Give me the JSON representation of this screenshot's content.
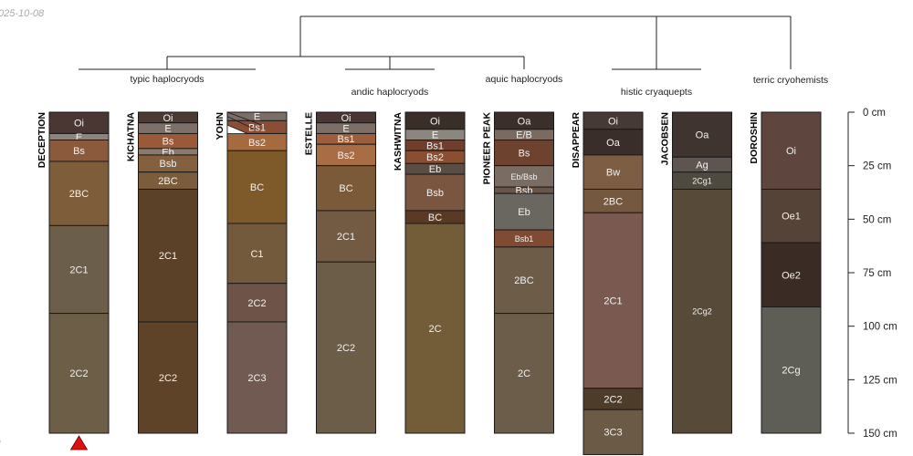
{
  "stamp": {
    "date": "025-10-08",
    "corner": "l"
  },
  "groups": [
    {
      "label": "typic haplocryods"
    },
    {
      "label": "andic haplocryods"
    },
    {
      "label": "aquic haplocryods"
    },
    {
      "label": "histic cryaquepts"
    },
    {
      "label": "terric cryohemists"
    }
  ],
  "depth_axis": {
    "unit": "cm",
    "ticks": [
      {
        "value": 0,
        "label": "0 cm"
      },
      {
        "value": 25,
        "label": "25 cm"
      },
      {
        "value": 50,
        "label": "50 cm"
      },
      {
        "value": 75,
        "label": "75 cm"
      },
      {
        "value": 100,
        "label": "100 cm"
      },
      {
        "value": 125,
        "label": "125 cm"
      },
      {
        "value": 150,
        "label": "150 cm"
      }
    ]
  },
  "profiles": [
    {
      "name": "DECEPTION",
      "marker": "red-triangle",
      "horizons": [
        {
          "name": "Oi",
          "top": 0,
          "bottom": 10,
          "color": "#4a3632"
        },
        {
          "name": "E",
          "top": 10,
          "bottom": 13,
          "color": "#8c857e"
        },
        {
          "name": "Bs",
          "top": 13,
          "bottom": 23,
          "color": "#8b5a3c"
        },
        {
          "name": "2BC",
          "top": 23,
          "bottom": 53,
          "color": "#7e5e3a"
        },
        {
          "name": "2C1",
          "top": 53,
          "bottom": 94,
          "color": "#6b5e4a"
        },
        {
          "name": "2C2",
          "top": 94,
          "bottom": 150,
          "color": "#6d5e47"
        }
      ]
    },
    {
      "name": "KICHATNA",
      "horizons": [
        {
          "name": "Oi",
          "top": 0,
          "bottom": 5,
          "color": "#4b3a33"
        },
        {
          "name": "E",
          "top": 5,
          "bottom": 10,
          "color": "#7d7068"
        },
        {
          "name": "Bs",
          "top": 10,
          "bottom": 17,
          "color": "#9a5a3a"
        },
        {
          "name": "Eb",
          "top": 17,
          "bottom": 20,
          "color": "#8a7a6e"
        },
        {
          "name": "Bsb",
          "top": 20,
          "bottom": 28,
          "color": "#85603f"
        },
        {
          "name": "2BC",
          "top": 28,
          "bottom": 36,
          "color": "#7b5c3c"
        },
        {
          "name": "2C1",
          "top": 36,
          "bottom": 98,
          "color": "#5b4128"
        },
        {
          "name": "2C2",
          "top": 98,
          "bottom": 150,
          "color": "#5e4329"
        }
      ]
    },
    {
      "name": "YOHN",
      "horizons": [
        {
          "name": "E",
          "top": 0,
          "bottom": 4,
          "color": "#7b6e66"
        },
        {
          "name": "Bs1",
          "top": 4,
          "bottom": 10,
          "color": "#8b4e35"
        },
        {
          "name": "Bs2",
          "top": 10,
          "bottom": 18,
          "color": "#a66a40"
        },
        {
          "name": "BC",
          "top": 18,
          "bottom": 52,
          "color": "#7e5a2a"
        },
        {
          "name": "C1",
          "top": 52,
          "bottom": 80,
          "color": "#735a3c"
        },
        {
          "name": "2C2",
          "top": 80,
          "bottom": 98,
          "color": "#6e5448"
        },
        {
          "name": "2C3",
          "top": 98,
          "bottom": 150,
          "color": "#705a52"
        }
      ]
    },
    {
      "name": "ESTELLE",
      "horizons": [
        {
          "name": "Oi",
          "top": 0,
          "bottom": 5,
          "color": "#4a3632"
        },
        {
          "name": "E",
          "top": 5,
          "bottom": 10,
          "color": "#7e6f66"
        },
        {
          "name": "Bs1",
          "top": 10,
          "bottom": 15,
          "color": "#9c5e3c"
        },
        {
          "name": "Bs2",
          "top": 15,
          "bottom": 25,
          "color": "#a86d45"
        },
        {
          "name": "BC",
          "top": 25,
          "bottom": 46,
          "color": "#7b5a3a"
        },
        {
          "name": "2C1",
          "top": 46,
          "bottom": 70,
          "color": "#735a42"
        },
        {
          "name": "2C2",
          "top": 70,
          "bottom": 150,
          "color": "#6b5d48"
        }
      ]
    },
    {
      "name": "KASHWITNA",
      "horizons": [
        {
          "name": "Oi",
          "top": 0,
          "bottom": 8,
          "color": "#3a2e28"
        },
        {
          "name": "E",
          "top": 8,
          "bottom": 13,
          "color": "#8c8680"
        },
        {
          "name": "Bs1",
          "top": 13,
          "bottom": 18,
          "color": "#6f3e2c"
        },
        {
          "name": "Bs2",
          "top": 18,
          "bottom": 24,
          "color": "#8a4e32"
        },
        {
          "name": "Eb",
          "top": 24,
          "bottom": 29,
          "color": "#5a4e44"
        },
        {
          "name": "Bsb",
          "top": 29,
          "bottom": 46,
          "color": "#7a5540"
        },
        {
          "name": "BC",
          "top": 46,
          "bottom": 52,
          "color": "#5a3a25"
        },
        {
          "name": "2C",
          "top": 52,
          "bottom": 150,
          "color": "#735c38"
        }
      ]
    },
    {
      "name": "PIONEER PEAK",
      "horizons": [
        {
          "name": "Oa",
          "top": 0,
          "bottom": 8,
          "color": "#3a2f2a"
        },
        {
          "name": "E/B",
          "top": 8,
          "bottom": 13,
          "color": "#7a6a62"
        },
        {
          "name": "Bs",
          "top": 13,
          "bottom": 25,
          "color": "#6d4330"
        },
        {
          "name": "Eb/Bsb",
          "top": 25,
          "bottom": 35,
          "color": "#7a6c62",
          "small": true
        },
        {
          "name": "Bsb",
          "top": 35,
          "bottom": 38,
          "color": "#6a5548"
        },
        {
          "name": "Eb",
          "top": 38,
          "bottom": 55,
          "color": "#6a6660"
        },
        {
          "name": "Bsb1",
          "top": 55,
          "bottom": 63,
          "color": "#804b32",
          "small": true
        },
        {
          "name": "2BC",
          "top": 63,
          "bottom": 94,
          "color": "#6d5c48"
        },
        {
          "name": "2C",
          "top": 94,
          "bottom": 150,
          "color": "#6b5d4a"
        }
      ]
    },
    {
      "name": "DISAPPEAR",
      "horizons": [
        {
          "name": "Oi",
          "top": 0,
          "bottom": 8,
          "color": "#463a36"
        },
        {
          "name": "Oa",
          "top": 8,
          "bottom": 20,
          "color": "#3a2e2a"
        },
        {
          "name": "Bw",
          "top": 20,
          "bottom": 36,
          "color": "#7d5e45"
        },
        {
          "name": "2BC",
          "top": 36,
          "bottom": 47,
          "color": "#745840"
        },
        {
          "name": "2C1",
          "top": 47,
          "bottom": 129,
          "color": "#7a5a50"
        },
        {
          "name": "2C2",
          "top": 129,
          "bottom": 139,
          "color": "#4e3c2a"
        },
        {
          "name": "3C3",
          "top": 139,
          "bottom": 160,
          "color": "#6b5a45"
        }
      ]
    },
    {
      "name": "JACOBSEN",
      "horizons": [
        {
          "name": "Oa",
          "top": 0,
          "bottom": 21,
          "color": "#403430"
        },
        {
          "name": "Ag",
          "top": 21,
          "bottom": 28,
          "color": "#5e5550"
        },
        {
          "name": "2Cg1",
          "top": 28,
          "bottom": 36,
          "color": "#4e4a40",
          "small": true
        },
        {
          "name": "2Cg2",
          "top": 36,
          "bottom": 150,
          "color": "#574a38",
          "small": true
        }
      ]
    },
    {
      "name": "DOROSHIN",
      "horizons": [
        {
          "name": "Oi",
          "top": 0,
          "bottom": 36,
          "color": "#5e463e"
        },
        {
          "name": "Oe1",
          "top": 36,
          "bottom": 61,
          "color": "#554338"
        },
        {
          "name": "Oe2",
          "top": 61,
          "bottom": 91,
          "color": "#3a2c24"
        },
        {
          "name": "2Cg",
          "top": 91,
          "bottom": 150,
          "color": "#5f5e56"
        }
      ]
    }
  ]
}
